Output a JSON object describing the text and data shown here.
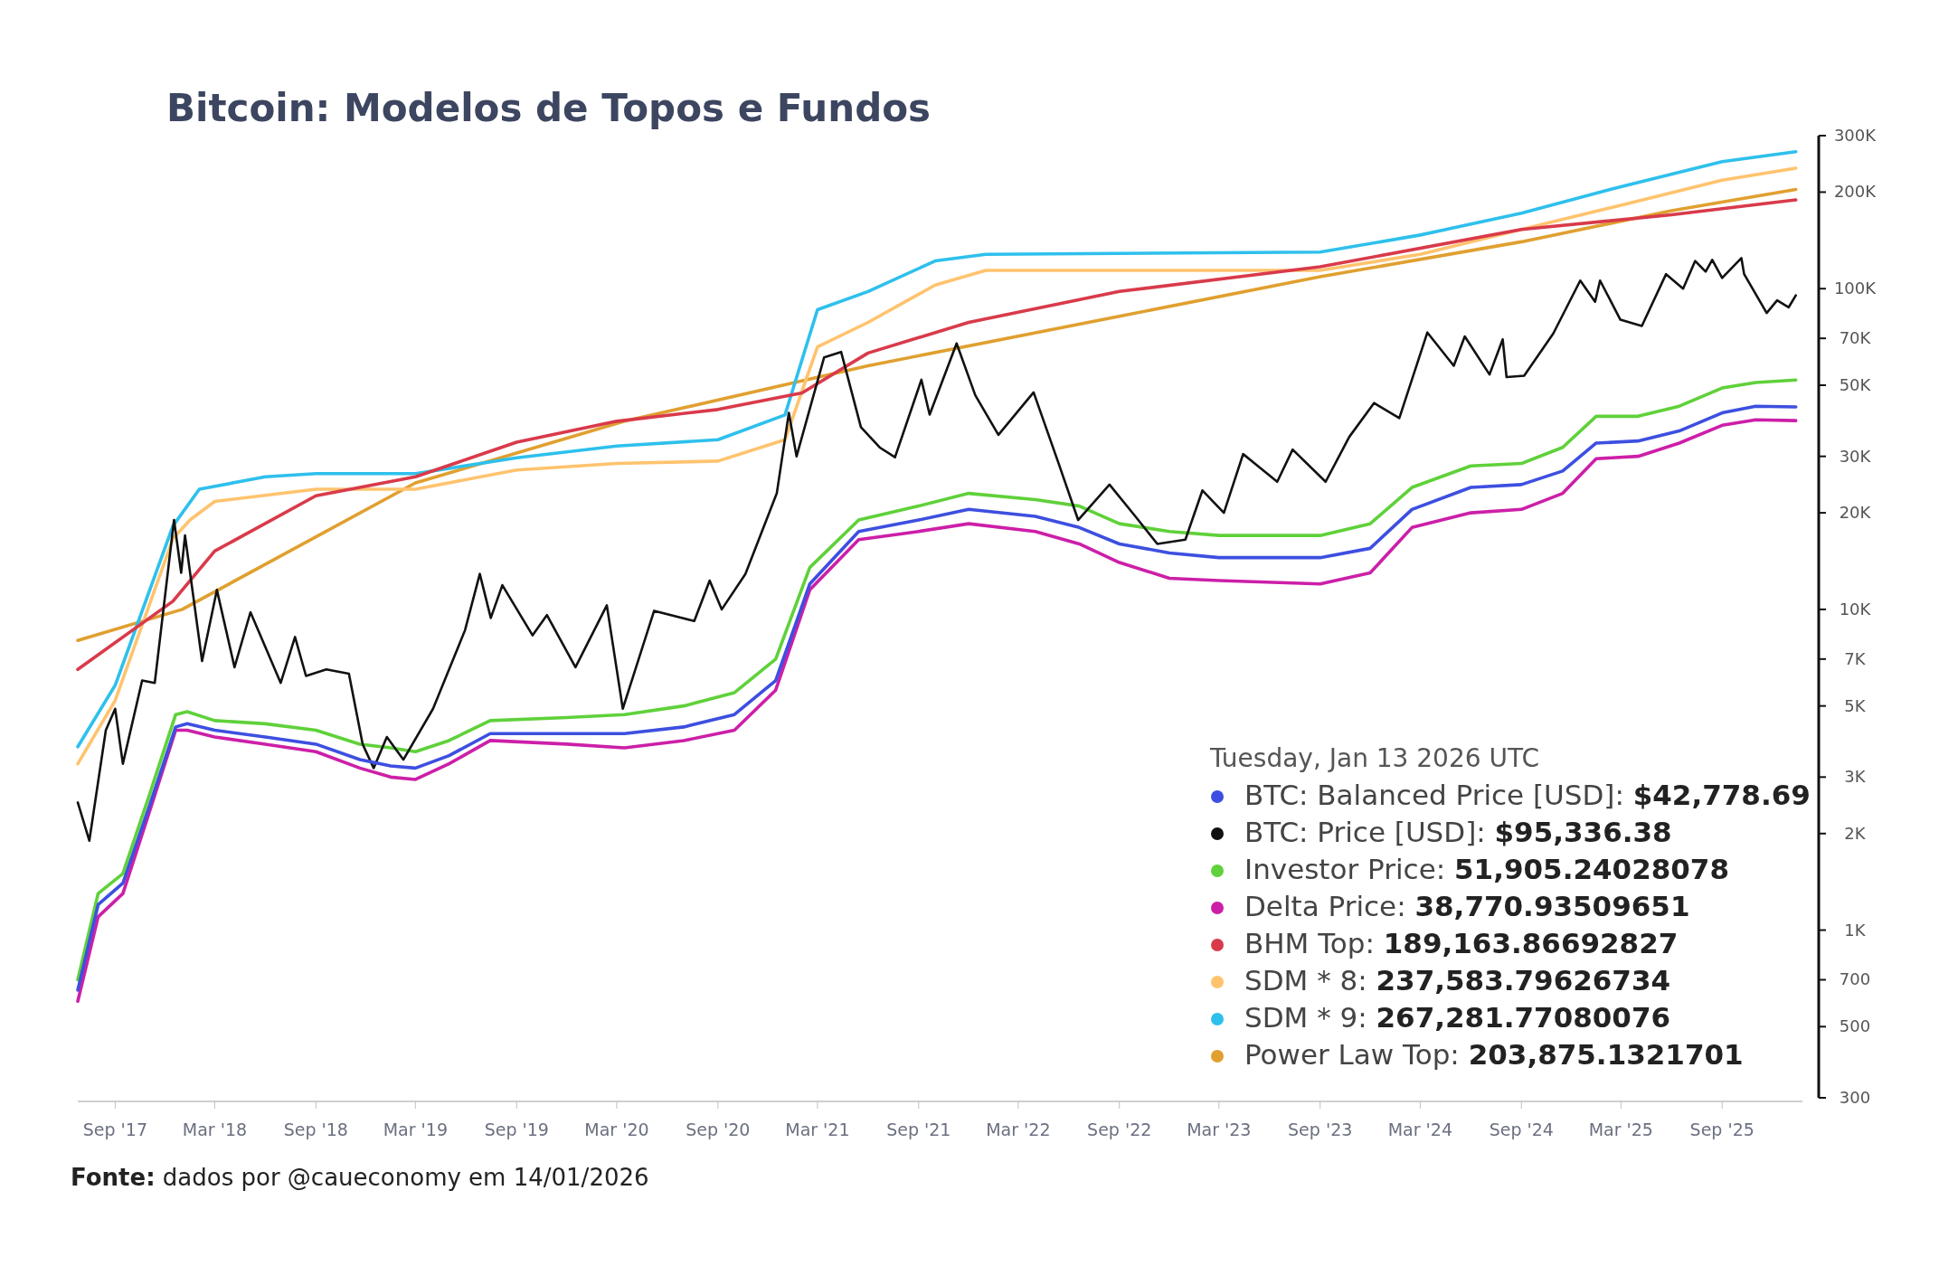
{
  "chart_data": {
    "type": "line",
    "title": "Bitcoin: Modelos de Topos e Fundos",
    "legend_title": "Tuesday, Jan 13 2026 UTC",
    "legend": "bottom right",
    "log": true,
    "xlim": [
      "2017-06-25",
      "2026-01-25"
    ],
    "xticks": [
      {
        "value": "2017-09-01",
        "label": "Sep '17"
      },
      {
        "value": "2018-03-01",
        "label": "Mar '18"
      },
      {
        "value": "2018-09-01",
        "label": "Sep '18"
      },
      {
        "value": "2019-03-01",
        "label": "Mar '19"
      },
      {
        "value": "2019-09-01",
        "label": "Sep '19"
      },
      {
        "value": "2020-03-01",
        "label": "Mar '20"
      },
      {
        "value": "2020-09-01",
        "label": "Sep '20"
      },
      {
        "value": "2021-03-01",
        "label": "Mar '21"
      },
      {
        "value": "2021-09-01",
        "label": "Sep '21"
      },
      {
        "value": "2022-03-01",
        "label": "Mar '22"
      },
      {
        "value": "2022-09-01",
        "label": "Sep '22"
      },
      {
        "value": "2023-03-01",
        "label": "Mar '23"
      },
      {
        "value": "2023-09-01",
        "label": "Sep '23"
      },
      {
        "value": "2024-03-01",
        "label": "Mar '24"
      },
      {
        "value": "2024-09-01",
        "label": "Sep '24"
      },
      {
        "value": "2025-03-01",
        "label": "Mar '25"
      },
      {
        "value": "2025-09-01",
        "label": "Sep '25"
      }
    ],
    "ylim": [
      300,
      300000
    ],
    "yticks": [
      300,
      500,
      700,
      {
        "value": 1000,
        "label": "1K"
      },
      {
        "value": 2000,
        "label": "2K"
      },
      {
        "value": 3000,
        "label": "3K"
      },
      {
        "value": 5000,
        "label": "5K"
      },
      {
        "value": 7000,
        "label": "7K"
      },
      {
        "value": 10000,
        "label": "10K"
      },
      {
        "value": 20000,
        "label": "20K"
      },
      {
        "value": 30000,
        "label": "30K"
      },
      {
        "value": 50000,
        "label": "50K"
      },
      {
        "value": 70000,
        "label": "70K"
      },
      {
        "value": 100000,
        "label": "100K"
      },
      {
        "value": 200000,
        "label": "200K"
      },
      {
        "value": 300000,
        "label": "300K"
      }
    ],
    "x": [
      "2017-06-25",
      "2017-08-01",
      "2017-09-15",
      "2017-11-01",
      "2017-12-20",
      "2018-01-10",
      "2018-03-01",
      "2018-06-01",
      "2018-09-01",
      "2018-11-20",
      "2019-01-15",
      "2019-03-01",
      "2019-05-01",
      "2019-07-15",
      "2019-12-01",
      "2020-03-15",
      "2020-07-01",
      "2020-10-01",
      "2020-12-15",
      "2021-02-15",
      "2021-05-15",
      "2021-09-01",
      "2021-12-01",
      "2022-04-01",
      "2022-06-20",
      "2022-09-01",
      "2022-12-01",
      "2023-03-01",
      "2023-09-01",
      "2023-12-01",
      "2024-02-15",
      "2024-06-01",
      "2024-09-01",
      "2024-11-15",
      "2025-01-15",
      "2025-04-01",
      "2025-06-15",
      "2025-09-01",
      "2025-11-01",
      "2026-01-13"
    ],
    "series": [
      {
        "name": "BTC: Balanced Price [USD]: $42,778.69",
        "color": "#3d4fe0",
        "values": [
          650,
          1200,
          1400,
          2400,
          4300,
          4400,
          4200,
          4000,
          3800,
          3400,
          3250,
          3200,
          3500,
          4100,
          4100,
          4100,
          4300,
          4700,
          6000,
          12000,
          17500,
          19000,
          20500,
          19500,
          18000,
          16000,
          15000,
          14500,
          14500,
          15500,
          20500,
          24000,
          24500,
          27000,
          33000,
          33500,
          36000,
          41000,
          43000,
          42778.69
        ]
      },
      {
        "name": "BTC: Price [USD]: $95,336.38",
        "color": "#111111",
        "x": [
          "2017-06-25",
          "2017-07-16",
          "2017-08-15",
          "2017-09-01",
          "2017-09-15",
          "2017-10-20",
          "2017-11-12",
          "2017-12-17",
          "2017-12-30",
          "2018-01-06",
          "2018-02-06",
          "2018-03-05",
          "2018-04-06",
          "2018-05-05",
          "2018-06-29",
          "2018-07-25",
          "2018-08-14",
          "2018-09-20",
          "2018-10-31",
          "2018-11-25",
          "2018-12-15",
          "2019-01-08",
          "2019-02-07",
          "2019-04-02",
          "2019-05-30",
          "2019-06-26",
          "2019-07-16",
          "2019-08-06",
          "2019-09-30",
          "2019-10-26",
          "2019-12-17",
          "2020-02-12",
          "2020-03-12",
          "2020-05-08",
          "2020-07-20",
          "2020-08-17",
          "2020-09-08",
          "2020-10-21",
          "2020-12-17",
          "2021-01-08",
          "2021-01-22",
          "2021-03-13",
          "2021-04-13",
          "2021-05-19",
          "2021-06-22",
          "2021-07-20",
          "2021-09-06",
          "2021-09-21",
          "2021-11-09",
          "2021-12-13",
          "2022-01-24",
          "2022-03-29",
          "2022-05-12",
          "2022-06-18",
          "2022-08-14",
          "2022-09-30",
          "2022-11-09",
          "2022-12-30",
          "2023-01-30",
          "2023-03-10",
          "2023-04-14",
          "2023-06-15",
          "2023-07-13",
          "2023-09-11",
          "2023-10-24",
          "2023-12-08",
          "2024-01-23",
          "2024-03-14",
          "2024-05-01",
          "2024-05-21",
          "2024-07-05",
          "2024-07-29",
          "2024-08-05",
          "2024-09-06",
          "2024-10-29",
          "2024-12-17",
          "2025-01-13",
          "2025-01-22",
          "2025-02-28",
          "2025-04-08",
          "2025-05-22",
          "2025-06-22",
          "2025-07-14",
          "2025-08-02",
          "2025-08-14",
          "2025-09-01",
          "2025-10-06",
          "2025-10-11",
          "2025-11-21",
          "2025-12-10",
          "2025-12-31",
          "2026-01-13"
        ],
        "values": [
          2500,
          1900,
          4200,
          4900,
          3300,
          6000,
          5900,
          19000,
          13000,
          17000,
          6900,
          11500,
          6600,
          9800,
          5900,
          8200,
          6200,
          6500,
          6300,
          3800,
          3200,
          4000,
          3400,
          4900,
          8600,
          12900,
          9400,
          11900,
          8300,
          9600,
          6600,
          10300,
          4900,
          9900,
          9200,
          12300,
          10000,
          12900,
          23000,
          41000,
          30000,
          61000,
          63500,
          37000,
          32000,
          29800,
          52000,
          40500,
          67500,
          46500,
          35000,
          47500,
          29000,
          19000,
          24500,
          19500,
          16000,
          16500,
          23500,
          20000,
          30500,
          25000,
          31500,
          25000,
          34500,
          44000,
          39500,
          73000,
          57500,
          71000,
          54000,
          69500,
          53000,
          53500,
          72500,
          106000,
          91000,
          106000,
          80000,
          76500,
          111000,
          100000,
          122000,
          113000,
          123000,
          108000,
          124500,
          111000,
          84000,
          92000,
          87500,
          95336.38
        ]
      },
      {
        "name": "Investor Price: 51,905.24028078",
        "color": "#5fd13a",
        "values": [
          700,
          1300,
          1500,
          2600,
          4700,
          4800,
          4500,
          4400,
          4200,
          3800,
          3700,
          3600,
          3900,
          4500,
          4600,
          4700,
          5000,
          5500,
          7000,
          13500,
          19000,
          21000,
          23000,
          22000,
          21000,
          18500,
          17500,
          17000,
          17000,
          18500,
          24000,
          28000,
          28500,
          32000,
          40000,
          40000,
          43000,
          49000,
          51000,
          51905.24
        ]
      },
      {
        "name": "Delta Price: 38,770.93509651",
        "color": "#cc1fa8",
        "values": [
          600,
          1100,
          1300,
          2300,
          4200,
          4200,
          4000,
          3800,
          3600,
          3200,
          3000,
          2950,
          3300,
          3900,
          3800,
          3700,
          3900,
          4200,
          5600,
          11500,
          16500,
          17500,
          18500,
          17500,
          16000,
          14000,
          12500,
          12300,
          12000,
          13000,
          18000,
          20000,
          20500,
          23000,
          29500,
          30000,
          33000,
          37500,
          39000,
          38770.94
        ]
      },
      {
        "name": "BHM Top: 189,163.86692827",
        "color": "#d93a4a",
        "x": [
          "2017-06-25",
          "2017-12-15",
          "2018-03-01",
          "2018-09-01",
          "2019-03-01",
          "2019-09-01",
          "2020-03-01",
          "2020-09-01",
          "2021-02-01",
          "2021-06-01",
          "2021-12-01",
          "2022-09-01",
          "2023-09-01",
          "2024-09-01",
          "2025-06-01",
          "2026-01-13"
        ],
        "values": [
          6500,
          10600,
          15200,
          22600,
          25900,
          33200,
          38600,
          42000,
          47300,
          63000,
          78500,
          98000,
          117000,
          153000,
          170000,
          189163.87
        ]
      },
      {
        "name": "SDM * 8: 237,583.79626734",
        "color": "#ffc36e",
        "x": [
          "2017-06-25",
          "2017-09-01",
          "2017-12-15",
          "2018-01-15",
          "2018-03-01",
          "2018-09-01",
          "2019-03-01",
          "2019-09-01",
          "2020-03-01",
          "2020-09-01",
          "2021-01-01",
          "2021-03-01",
          "2021-06-01",
          "2021-10-01",
          "2022-01-01",
          "2022-09-01",
          "2023-09-01",
          "2024-03-01",
          "2024-09-01",
          "2025-03-01",
          "2025-09-01",
          "2026-01-13"
        ],
        "values": [
          3300,
          5200,
          16600,
          19000,
          21700,
          23700,
          23700,
          27200,
          28500,
          29000,
          33800,
          65800,
          78500,
          102600,
          114000,
          114000,
          114000,
          128000,
          153000,
          182000,
          218000,
          237583.8
        ]
      },
      {
        "name": "SDM * 9: 267,281.77080076",
        "color": "#2ec0ec",
        "x": [
          "2017-06-25",
          "2017-09-01",
          "2017-12-15",
          "2018-02-01",
          "2018-06-01",
          "2018-09-01",
          "2019-03-01",
          "2019-09-01",
          "2020-03-01",
          "2020-09-01",
          "2021-01-01",
          "2021-03-01",
          "2021-06-01",
          "2021-10-01",
          "2022-01-01",
          "2023-09-01",
          "2024-03-01",
          "2024-09-01",
          "2025-03-01",
          "2025-09-01",
          "2026-01-13"
        ],
        "values": [
          3730,
          5800,
          18200,
          23700,
          25900,
          26500,
          26500,
          29700,
          32300,
          33800,
          40400,
          86000,
          98000,
          122000,
          128000,
          130000,
          147000,
          172000,
          208000,
          249000,
          267281.77
        ]
      },
      {
        "name": "Power Law Top: 203,875.1321701",
        "color": "#e0a030",
        "x": [
          "2017-06-25",
          "2018-01-01",
          "2019-03-01",
          "2020-03-15",
          "2021-06-01",
          "2022-09-01",
          "2023-09-01",
          "2024-09-01",
          "2025-06-01",
          "2026-01-13"
        ],
        "values": [
          8000,
          10000,
          24800,
          38600,
          57500,
          82000,
          109000,
          140000,
          175000,
          203875.13
        ]
      }
    ],
    "annotations": [
      "Fonte: dados por @caueconomy em 14/01/2026"
    ]
  }
}
